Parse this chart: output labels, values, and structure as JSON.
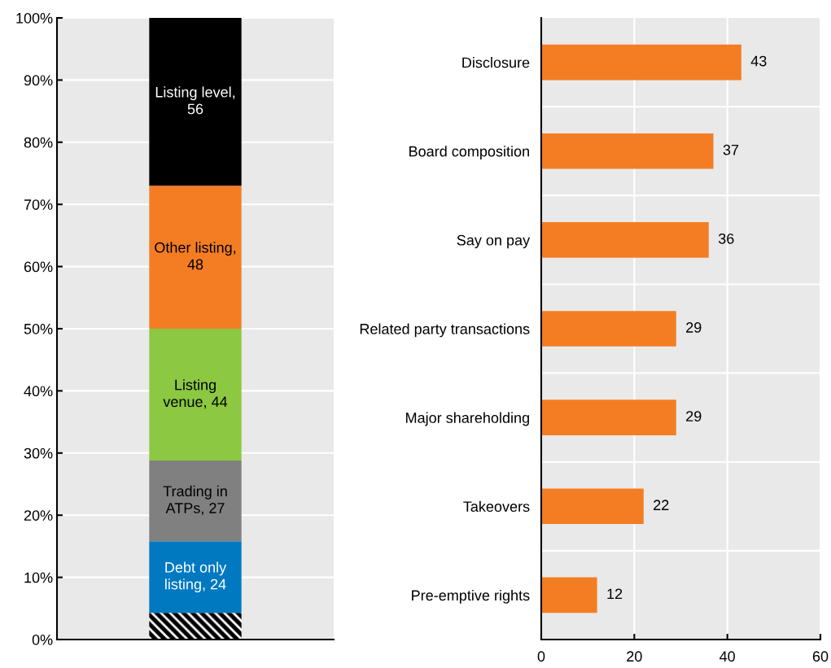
{
  "chart_data": [
    {
      "type": "bar",
      "stacked": true,
      "categories": [
        null
      ],
      "ylim": [
        0,
        100
      ],
      "yticks": [
        {
          "value": 0,
          "label": "0%"
        },
        {
          "value": 10,
          "label": "10%"
        },
        {
          "value": 20,
          "label": "20%"
        },
        {
          "value": 30,
          "label": "30%"
        },
        {
          "value": 40,
          "label": "40%"
        },
        {
          "value": 50,
          "label": "50%"
        },
        {
          "value": 60,
          "label": "60%"
        },
        {
          "value": 70,
          "label": "70%"
        },
        {
          "value": 80,
          "label": "80%"
        },
        {
          "value": 90,
          "label": "90%"
        },
        {
          "value": 100,
          "label": "100%"
        }
      ],
      "grid": "y",
      "series": [
        {
          "color": "#000000",
          "values": [
            4.3
          ]
        },
        {
          "color": "#0079c1",
          "values": [
            11.5
          ]
        },
        {
          "color": "#808080",
          "values": [
            13.0
          ]
        },
        {
          "color": "#8cc841",
          "values": [
            21.2
          ]
        },
        {
          "color": "#f47d23",
          "values": [
            23.0
          ]
        },
        {
          "color": "#000000",
          "values": [
            27.0
          ]
        }
      ],
      "annotations": [
        "Debt only\nlisting, 24",
        "Trading in\nATPs, 27",
        "Listing\nvenue, 44",
        "Other listing,\n48",
        "Listing level,\n56"
      ]
    },
    {
      "type": "bar",
      "orientation": "horizontal",
      "categories": [
        "Disclosure",
        "Board composition",
        "Say on pay",
        "Related party transactions",
        "Major shareholding",
        "Takeovers",
        "Pre-emptive rights"
      ],
      "values": [
        43,
        37,
        36,
        29,
        29,
        22,
        12
      ],
      "color": "#f47d23",
      "data_labels": true,
      "xlim": [
        0,
        60
      ],
      "xticks": [
        0,
        20,
        40,
        60
      ],
      "grid": true
    }
  ]
}
